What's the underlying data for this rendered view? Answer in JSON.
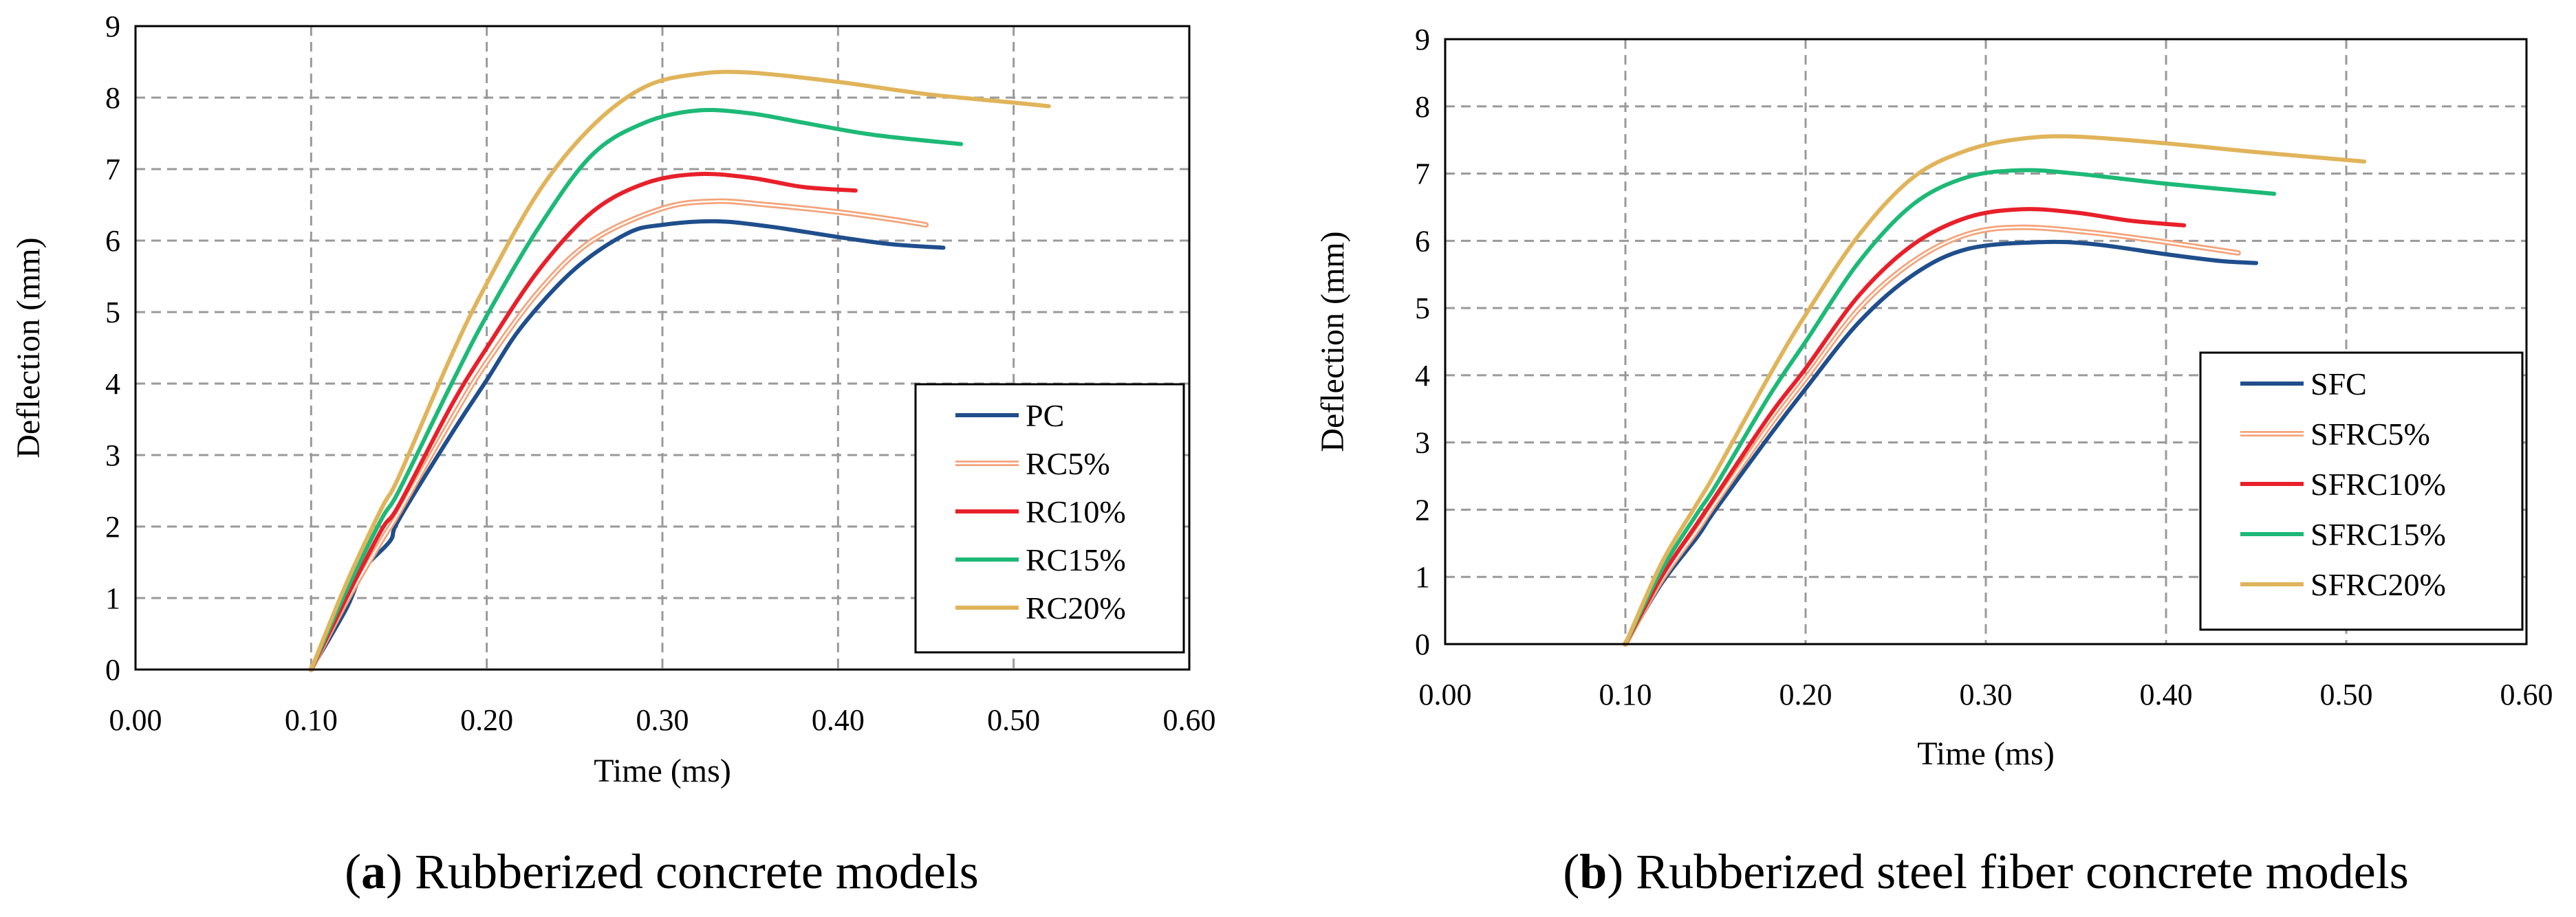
{
  "chart_data": [
    {
      "type": "line",
      "panel": "a",
      "caption_letter": "a",
      "caption_text": "Rubberized concrete models",
      "xlabel": "Time (ms)",
      "ylabel": "Deflection (mm)",
      "xlim": [
        0,
        0.6
      ],
      "ylim": [
        0,
        9
      ],
      "x_ticks": [
        "0.00",
        "0.10",
        "0.20",
        "0.30",
        "0.40",
        "0.50",
        "0.60"
      ],
      "y_ticks": [
        "0",
        "1",
        "2",
        "3",
        "4",
        "5",
        "6",
        "7",
        "8",
        "9"
      ],
      "grid": true,
      "legend_position": "bottom-right",
      "series": [
        {
          "name": "PC",
          "color": "#1f4e8c",
          "style": "solid",
          "points": [
            [
              0.1,
              0
            ],
            [
              0.12,
              0.85
            ],
            [
              0.13,
              1.4
            ],
            [
              0.145,
              1.8
            ],
            [
              0.15,
              2.1
            ],
            [
              0.18,
              3.3
            ],
            [
              0.2,
              4.05
            ],
            [
              0.22,
              4.8
            ],
            [
              0.25,
              5.6
            ],
            [
              0.28,
              6.1
            ],
            [
              0.3,
              6.22
            ],
            [
              0.33,
              6.27
            ],
            [
              0.36,
              6.2
            ],
            [
              0.4,
              6.05
            ],
            [
              0.43,
              5.95
            ],
            [
              0.46,
              5.9
            ]
          ]
        },
        {
          "name": "RC5%",
          "color": "#f4a37a",
          "style": "double",
          "points": [
            [
              0.1,
              0
            ],
            [
              0.12,
              0.95
            ],
            [
              0.14,
              1.8
            ],
            [
              0.15,
              2.2
            ],
            [
              0.18,
              3.5
            ],
            [
              0.2,
              4.3
            ],
            [
              0.23,
              5.3
            ],
            [
              0.26,
              6.0
            ],
            [
              0.3,
              6.45
            ],
            [
              0.33,
              6.55
            ],
            [
              0.36,
              6.5
            ],
            [
              0.4,
              6.4
            ],
            [
              0.43,
              6.3
            ],
            [
              0.45,
              6.22
            ]
          ]
        },
        {
          "name": "RC10%",
          "color": "#e8202a",
          "style": "solid",
          "points": [
            [
              0.1,
              0
            ],
            [
              0.12,
              1.0
            ],
            [
              0.14,
              1.95
            ],
            [
              0.15,
              2.3
            ],
            [
              0.18,
              3.7
            ],
            [
              0.2,
              4.5
            ],
            [
              0.23,
              5.6
            ],
            [
              0.26,
              6.4
            ],
            [
              0.29,
              6.8
            ],
            [
              0.32,
              6.93
            ],
            [
              0.35,
              6.88
            ],
            [
              0.38,
              6.75
            ],
            [
              0.41,
              6.7
            ]
          ]
        },
        {
          "name": "RC15%",
          "color": "#1db977",
          "style": "solid",
          "points": [
            [
              0.1,
              0
            ],
            [
              0.12,
              1.1
            ],
            [
              0.14,
              2.1
            ],
            [
              0.15,
              2.5
            ],
            [
              0.18,
              4.0
            ],
            [
              0.2,
              4.95
            ],
            [
              0.23,
              6.2
            ],
            [
              0.26,
              7.2
            ],
            [
              0.29,
              7.65
            ],
            [
              0.32,
              7.82
            ],
            [
              0.35,
              7.78
            ],
            [
              0.38,
              7.65
            ],
            [
              0.42,
              7.48
            ],
            [
              0.47,
              7.35
            ]
          ]
        },
        {
          "name": "RC20%",
          "color": "#e0b45a",
          "style": "solid",
          "points": [
            [
              0.1,
              0
            ],
            [
              0.12,
              1.2
            ],
            [
              0.14,
              2.25
            ],
            [
              0.15,
              2.7
            ],
            [
              0.18,
              4.4
            ],
            [
              0.2,
              5.4
            ],
            [
              0.23,
              6.7
            ],
            [
              0.26,
              7.6
            ],
            [
              0.29,
              8.15
            ],
            [
              0.32,
              8.33
            ],
            [
              0.35,
              8.35
            ],
            [
              0.4,
              8.22
            ],
            [
              0.45,
              8.05
            ],
            [
              0.5,
              7.93
            ],
            [
              0.52,
              7.88
            ]
          ]
        }
      ]
    },
    {
      "type": "line",
      "panel": "b",
      "caption_letter": "b",
      "caption_text": "Rubberized steel fiber concrete models",
      "xlabel": "Time (ms)",
      "ylabel": "Deflection (mm)",
      "xlim": [
        0,
        0.6
      ],
      "ylim": [
        0,
        9
      ],
      "x_ticks": [
        "0.00",
        "0.10",
        "0.20",
        "0.30",
        "0.40",
        "0.50",
        "0.60"
      ],
      "y_ticks": [
        "0",
        "1",
        "2",
        "3",
        "4",
        "5",
        "6",
        "7",
        "8",
        "9"
      ],
      "grid": true,
      "legend_position": "bottom-right",
      "series": [
        {
          "name": "SFC",
          "color": "#1f4e8c",
          "style": "solid",
          "points": [
            [
              0.1,
              0
            ],
            [
              0.12,
              0.9
            ],
            [
              0.14,
              1.6
            ],
            [
              0.15,
              2.0
            ],
            [
              0.18,
              3.1
            ],
            [
              0.2,
              3.8
            ],
            [
              0.23,
              4.8
            ],
            [
              0.26,
              5.5
            ],
            [
              0.29,
              5.88
            ],
            [
              0.33,
              5.98
            ],
            [
              0.36,
              5.95
            ],
            [
              0.4,
              5.8
            ],
            [
              0.43,
              5.7
            ],
            [
              0.45,
              5.67
            ]
          ]
        },
        {
          "name": "SFRC5%",
          "color": "#f4a37a",
          "style": "double",
          "points": [
            [
              0.1,
              0
            ],
            [
              0.12,
              0.95
            ],
            [
              0.14,
              1.7
            ],
            [
              0.15,
              2.1
            ],
            [
              0.18,
              3.25
            ],
            [
              0.2,
              3.95
            ],
            [
              0.23,
              5.0
            ],
            [
              0.26,
              5.7
            ],
            [
              0.29,
              6.1
            ],
            [
              0.32,
              6.2
            ],
            [
              0.36,
              6.12
            ],
            [
              0.4,
              5.98
            ],
            [
              0.44,
              5.82
            ]
          ]
        },
        {
          "name": "SFRC10%",
          "color": "#e8202a",
          "style": "solid",
          "points": [
            [
              0.1,
              0
            ],
            [
              0.12,
              1.0
            ],
            [
              0.14,
              1.8
            ],
            [
              0.15,
              2.2
            ],
            [
              0.18,
              3.4
            ],
            [
              0.2,
              4.1
            ],
            [
              0.23,
              5.2
            ],
            [
              0.26,
              5.95
            ],
            [
              0.29,
              6.35
            ],
            [
              0.32,
              6.47
            ],
            [
              0.35,
              6.42
            ],
            [
              0.38,
              6.3
            ],
            [
              0.41,
              6.23
            ]
          ]
        },
        {
          "name": "SFRC15%",
          "color": "#1db977",
          "style": "solid",
          "points": [
            [
              0.1,
              0
            ],
            [
              0.12,
              1.1
            ],
            [
              0.14,
              1.95
            ],
            [
              0.15,
              2.35
            ],
            [
              0.18,
              3.7
            ],
            [
              0.2,
              4.5
            ],
            [
              0.23,
              5.7
            ],
            [
              0.26,
              6.55
            ],
            [
              0.29,
              6.95
            ],
            [
              0.32,
              7.05
            ],
            [
              0.35,
              7.0
            ],
            [
              0.4,
              6.85
            ],
            [
              0.46,
              6.7
            ]
          ]
        },
        {
          "name": "SFRC20%",
          "color": "#e0b45a",
          "style": "solid",
          "points": [
            [
              0.1,
              0
            ],
            [
              0.12,
              1.2
            ],
            [
              0.14,
              2.1
            ],
            [
              0.15,
              2.55
            ],
            [
              0.18,
              4.0
            ],
            [
              0.2,
              4.9
            ],
            [
              0.23,
              6.1
            ],
            [
              0.26,
              6.95
            ],
            [
              0.29,
              7.35
            ],
            [
              0.32,
              7.52
            ],
            [
              0.35,
              7.55
            ],
            [
              0.4,
              7.45
            ],
            [
              0.45,
              7.32
            ],
            [
              0.51,
              7.18
            ]
          ]
        }
      ]
    }
  ]
}
